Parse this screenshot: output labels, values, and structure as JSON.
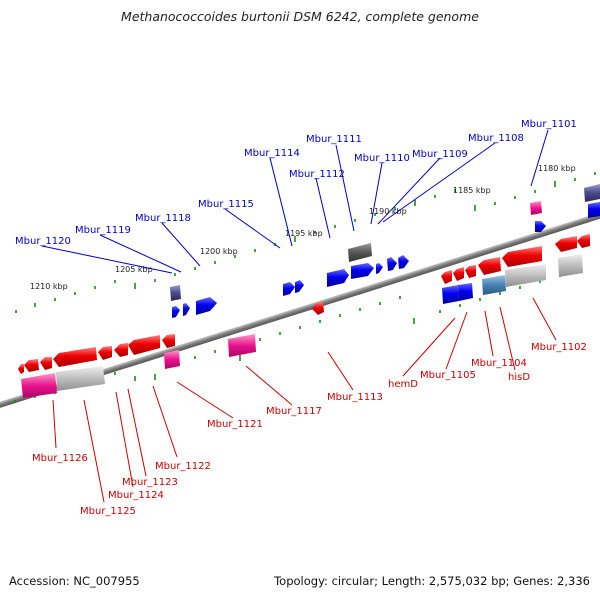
{
  "title": "Methanococcoides burtonii DSM 6242, complete genome",
  "footer": {
    "accession": "Accession: NC_007955",
    "stats": "Topology: circular; Length: 2,575,032 bp; Genes: 2,336"
  },
  "colors": {
    "plus_strand_gene": "#0000ee",
    "minus_strand_gene": "#ee0000",
    "plus_label": "#0000cc",
    "minus_label": "#cc0000",
    "backbone": "#808080",
    "tick": "#1a8a1a",
    "feature_pink": "#e8148c",
    "feature_gray": "#a8a8a8",
    "feature_dark": "#505050",
    "feature_navy": "#4a4a8a",
    "feature_steel": "#4682b4"
  },
  "scale_labels": [
    "1180 kbp",
    "1185 kbp",
    "1190 kbp",
    "1195 kbp",
    "1200 kbp",
    "1205 kbp",
    "1210 kbp"
  ],
  "plus_gene_labels": [
    "Mbur_1101",
    "Mbur_1108",
    "Mbur_1109",
    "Mbur_1110",
    "Mbur_1111",
    "Mbur_1112",
    "Mbur_1114",
    "Mbur_1115",
    "Mbur_1118",
    "Mbur_1119",
    "Mbur_1120"
  ],
  "minus_gene_labels": [
    "Mbur_1102",
    "hisD",
    "Mbur_1104",
    "Mbur_1105",
    "hemD",
    "Mbur_1113",
    "Mbur_1117",
    "Mbur_1121",
    "Mbur_1122",
    "Mbur_1123",
    "Mbur_1124",
    "Mbur_1125",
    "Mbur_1126"
  ]
}
